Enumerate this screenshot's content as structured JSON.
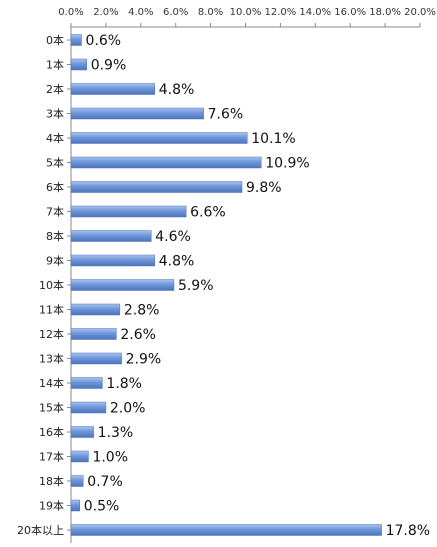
{
  "chart_data": {
    "type": "bar",
    "orientation": "horizontal",
    "title": "",
    "xlabel": "",
    "ylabel": "",
    "categories": [
      "0本",
      "1本",
      "2本",
      "3本",
      "4本",
      "5本",
      "6本",
      "7本",
      "8本",
      "9本",
      "10本",
      "11本",
      "12本",
      "13本",
      "14本",
      "15本",
      "16本",
      "17本",
      "18本",
      "19本",
      "20本以上"
    ],
    "values": [
      0.6,
      0.9,
      4.8,
      7.6,
      10.1,
      10.9,
      9.8,
      6.6,
      4.6,
      4.8,
      5.9,
      2.8,
      2.6,
      2.9,
      1.8,
      2.0,
      1.3,
      1.0,
      0.7,
      0.5,
      17.8
    ],
    "data_labels": [
      "0.6%",
      "0.9%",
      "4.8%",
      "7.6%",
      "10.1%",
      "10.9%",
      "9.8%",
      "6.6%",
      "4.6%",
      "4.8%",
      "5.9%",
      "2.8%",
      "2.6%",
      "2.9%",
      "1.8%",
      "2.0%",
      "1.3%",
      "1.0%",
      "0.7%",
      "0.5%",
      "17.8%"
    ],
    "xlim": [
      0,
      20
    ],
    "x_ticks": [
      0,
      2,
      4,
      6,
      8,
      10,
      12,
      14,
      16,
      18,
      20
    ],
    "x_tick_labels": [
      "0.0%",
      "2.0%",
      "4.0%",
      "6.0%",
      "8.0%",
      "10.0%",
      "12.0%",
      "14.0%",
      "16.0%",
      "18.0%",
      "20.0%"
    ],
    "x_axis_position": "top",
    "grid": false,
    "legend": "none",
    "bar_color": "#6f96d9",
    "bar_color_light": "#aac3ef",
    "bar_color_dark": "#4d74bd"
  }
}
